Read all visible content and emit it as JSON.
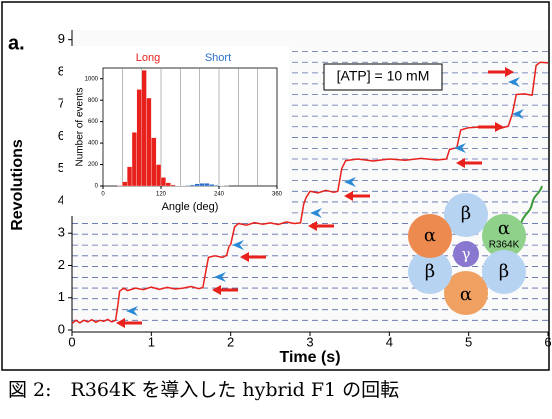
{
  "panel_label": "a.",
  "chart_data": [
    {
      "type": "line",
      "title": "[ATP] = 10 mM",
      "x_label": "Time (s)",
      "y_label": "Revolutions",
      "xlim": [
        0,
        6
      ],
      "ylim": [
        0,
        9.3
      ],
      "xticks": [
        0,
        1,
        2,
        3,
        4,
        5,
        6
      ],
      "yticks": [
        0,
        1,
        2,
        3,
        4,
        5,
        6,
        7,
        8,
        9
      ],
      "reference_lines": [
        0.3,
        0.63,
        0.97,
        1.3,
        1.63,
        1.97,
        2.3,
        2.63,
        2.97,
        3.3,
        3.63,
        3.97,
        4.3,
        4.63,
        4.97,
        5.3,
        5.63,
        5.97,
        6.3,
        6.63,
        6.97,
        7.3,
        7.63,
        7.97,
        8.3,
        8.63
      ],
      "x": [
        0,
        0.05,
        0.1,
        0.15,
        0.2,
        0.25,
        0.3,
        0.35,
        0.4,
        0.45,
        0.5,
        0.55,
        0.58,
        0.6,
        0.65,
        0.7,
        0.8,
        0.9,
        1.0,
        1.1,
        1.2,
        1.3,
        1.4,
        1.5,
        1.6,
        1.65,
        1.7,
        1.72,
        1.8,
        1.9,
        1.95,
        1.98,
        2.0,
        2.05,
        2.1,
        2.2,
        2.3,
        2.4,
        2.5,
        2.6,
        2.7,
        2.8,
        2.88,
        2.92,
        2.95,
        3.0,
        3.1,
        3.2,
        3.3,
        3.35,
        3.4,
        3.45,
        3.6,
        3.8,
        4.0,
        4.2,
        4.4,
        4.6,
        4.72,
        4.76,
        4.85,
        4.9,
        5.0,
        5.2,
        5.4,
        5.5,
        5.55,
        5.6,
        5.7,
        5.8,
        5.85,
        5.9,
        6.0
      ],
      "series": [
        {
          "color": "#e8211c",
          "values": [
            0.2,
            0.3,
            0.22,
            0.3,
            0.25,
            0.32,
            0.24,
            0.3,
            0.27,
            0.33,
            0.25,
            0.3,
            0.8,
            1.2,
            1.3,
            1.22,
            1.3,
            1.25,
            1.33,
            1.26,
            1.32,
            1.27,
            1.3,
            1.35,
            1.28,
            1.32,
            2.0,
            2.25,
            2.3,
            2.25,
            2.32,
            2.6,
            2.65,
            3.2,
            3.3,
            3.25,
            3.33,
            3.28,
            3.32,
            3.27,
            3.35,
            3.3,
            3.32,
            3.9,
            4.1,
            4.3,
            4.25,
            4.33,
            4.27,
            4.3,
            5.0,
            5.25,
            5.3,
            5.24,
            5.3,
            5.26,
            5.32,
            5.27,
            5.3,
            5.6,
            5.65,
            6.2,
            6.27,
            6.3,
            6.25,
            6.32,
            6.7,
            7.3,
            7.32,
            7.28,
            8.2,
            8.3,
            8.28
          ]
        }
      ]
    },
    {
      "type": "histogram",
      "x_label": "Angle (deg)",
      "y_label": "Number of events",
      "xlim": [
        0,
        360
      ],
      "ylim": [
        0,
        1100
      ],
      "xticks": [
        0,
        120,
        240,
        360
      ],
      "yticks": [
        0,
        200,
        400,
        600,
        800,
        1000
      ],
      "xgrid": [
        40,
        80,
        120,
        160,
        200,
        240,
        280,
        320
      ],
      "bins": [
        0,
        10,
        20,
        30,
        40,
        50,
        60,
        70,
        80,
        90,
        100,
        110,
        120,
        130,
        140,
        150,
        160,
        170,
        180,
        190,
        200,
        210,
        220,
        230,
        240,
        250,
        260,
        270,
        280,
        290,
        300,
        310,
        320,
        330,
        340,
        350,
        360
      ],
      "series": [
        {
          "name": "Long",
          "color": "#e8211c",
          "values": [
            0,
            0,
            0,
            5,
            40,
            180,
            500,
            900,
            1080,
            820,
            450,
            200,
            80,
            30,
            10,
            3,
            0,
            0,
            0,
            0,
            0,
            0,
            0,
            0,
            0,
            0,
            0,
            0,
            0,
            0,
            0,
            0,
            0,
            0,
            0,
            0
          ]
        },
        {
          "name": "Short",
          "color": "#2a6fc9",
          "values": [
            0,
            0,
            0,
            0,
            0,
            0,
            0,
            0,
            0,
            0,
            0,
            0,
            0,
            0,
            0,
            0,
            2,
            5,
            10,
            20,
            25,
            25,
            15,
            8,
            3,
            1,
            0,
            0,
            0,
            0,
            0,
            0,
            0,
            0,
            0,
            0
          ]
        }
      ]
    }
  ],
  "diagram": {
    "alpha": "α",
    "beta": "β",
    "gamma": "γ",
    "mutation": "R364K"
  },
  "caption": "図 2:　R364K を導入した hybrid F1 の回転"
}
